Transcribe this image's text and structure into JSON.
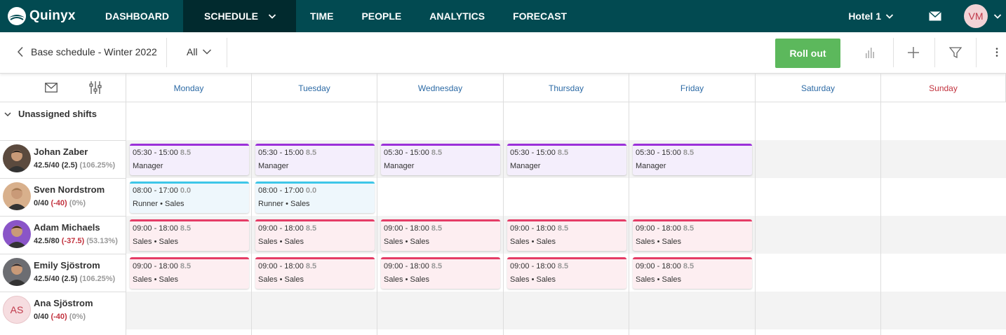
{
  "app": {
    "brand": "Quinyx",
    "nav": [
      {
        "label": "DASHBOARD"
      },
      {
        "label": "SCHEDULE"
      },
      {
        "label": "TIME"
      },
      {
        "label": "PEOPLE"
      },
      {
        "label": "ANALYTICS"
      },
      {
        "label": "FORECAST"
      }
    ],
    "active_nav": "SCHEDULE",
    "location": "Hotel 1",
    "user_initials": "VM"
  },
  "toolbar": {
    "back_label": "Base schedule - Winter 2022",
    "filter_label": "All",
    "rollout_label": "Roll out"
  },
  "days": [
    "Monday",
    "Tuesday",
    "Wednesday",
    "Thursday",
    "Friday",
    "Saturday",
    "Sunday"
  ],
  "unassigned_label": "Unassigned shifts",
  "employees": [
    {
      "name": "Johan Zaber",
      "hours": "42.5/40",
      "diff": "(2.5)",
      "pct": "(106.25%)",
      "diff_negative": false
    },
    {
      "name": "Sven Nordstrom",
      "hours": "0/40",
      "diff": "(-40)",
      "pct": "(0%)",
      "diff_negative": true
    },
    {
      "name": "Adam Michaels",
      "hours": "42.5/80",
      "diff": "(-37.5)",
      "pct": "(53.13%)",
      "diff_negative": true
    },
    {
      "name": "Emily Sjöstrom",
      "hours": "42.5/40",
      "diff": "(2.5)",
      "pct": "(106.25%)",
      "diff_negative": false
    },
    {
      "name": "Ana Sjöstrom",
      "initials": "AS",
      "hours": "0/40",
      "diff": "(-40)",
      "pct": "(0%)",
      "diff_negative": true
    }
  ],
  "shifts": [
    {
      "row": 0,
      "day": 0,
      "time": "05:30 - 15:00",
      "dur": "8.5",
      "label": "Manager",
      "kind": "manager"
    },
    {
      "row": 0,
      "day": 1,
      "time": "05:30 - 15:00",
      "dur": "8.5",
      "label": "Manager",
      "kind": "manager"
    },
    {
      "row": 0,
      "day": 2,
      "time": "05:30 - 15:00",
      "dur": "8.5",
      "label": "Manager",
      "kind": "manager"
    },
    {
      "row": 0,
      "day": 3,
      "time": "05:30 - 15:00",
      "dur": "8.5",
      "label": "Manager",
      "kind": "manager"
    },
    {
      "row": 0,
      "day": 4,
      "time": "05:30 - 15:00",
      "dur": "8.5",
      "label": "Manager",
      "kind": "manager"
    },
    {
      "row": 1,
      "day": 0,
      "time": "08:00 - 17:00",
      "dur": "0.0",
      "label": "Runner • Sales",
      "kind": "runner"
    },
    {
      "row": 1,
      "day": 1,
      "time": "08:00 - 17:00",
      "dur": "0.0",
      "label": "Runner • Sales",
      "kind": "runner"
    },
    {
      "row": 2,
      "day": 0,
      "time": "09:00 - 18:00",
      "dur": "8.5",
      "label": "Sales • Sales",
      "kind": "sales"
    },
    {
      "row": 2,
      "day": 1,
      "time": "09:00 - 18:00",
      "dur": "8.5",
      "label": "Sales • Sales",
      "kind": "sales"
    },
    {
      "row": 2,
      "day": 2,
      "time": "09:00 - 18:00",
      "dur": "8.5",
      "label": "Sales • Sales",
      "kind": "sales"
    },
    {
      "row": 2,
      "day": 3,
      "time": "09:00 - 18:00",
      "dur": "8.5",
      "label": "Sales • Sales",
      "kind": "sales"
    },
    {
      "row": 2,
      "day": 4,
      "time": "09:00 - 18:00",
      "dur": "8.5",
      "label": "Sales • Sales",
      "kind": "sales"
    },
    {
      "row": 3,
      "day": 0,
      "time": "09:00 - 18:00",
      "dur": "8.5",
      "label": "Sales • Sales",
      "kind": "sales"
    },
    {
      "row": 3,
      "day": 1,
      "time": "09:00 - 18:00",
      "dur": "8.5",
      "label": "Sales • Sales",
      "kind": "sales"
    },
    {
      "row": 3,
      "day": 2,
      "time": "09:00 - 18:00",
      "dur": "8.5",
      "label": "Sales • Sales",
      "kind": "sales"
    },
    {
      "row": 3,
      "day": 3,
      "time": "09:00 - 18:00",
      "dur": "8.5",
      "label": "Sales • Sales",
      "kind": "sales"
    },
    {
      "row": 3,
      "day": 4,
      "time": "09:00 - 18:00",
      "dur": "8.5",
      "label": "Sales • Sales",
      "kind": "sales"
    }
  ],
  "icons": {
    "mail": "envelope-icon",
    "filter_settings": "sliders-icon",
    "stats": "bar-chart-icon",
    "add": "plus-icon",
    "filter": "funnel-icon",
    "more": "vertical-dots-icon"
  }
}
